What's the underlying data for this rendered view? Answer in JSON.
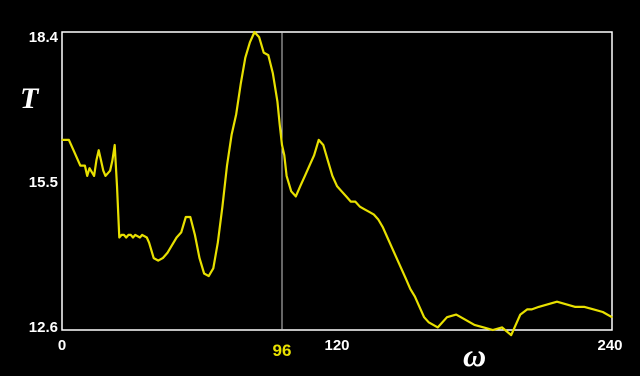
{
  "chart_data": {
    "type": "line",
    "xlabel": "ω",
    "ylabel": "T",
    "xlim": [
      0,
      240
    ],
    "ylim": [
      12.6,
      18.4
    ],
    "x_ticks": [
      "0",
      "120",
      "240"
    ],
    "y_ticks": [
      "18.4",
      "15.5",
      "12.6"
    ],
    "marker": {
      "x": 96,
      "label": "96"
    },
    "grid": false,
    "colors": {
      "background": "#000000",
      "line": "#e8e000",
      "frame": "#ffffff",
      "marker_line": "#cccccc",
      "marker_label": "#e8e000"
    },
    "series": [
      {
        "x": [
          0,
          3,
          5,
          8,
          10,
          11,
          12,
          14,
          15,
          16,
          17,
          18,
          19,
          20,
          21,
          22,
          23,
          24,
          25,
          26,
          27,
          28,
          29,
          30,
          31,
          32,
          34,
          35,
          37,
          38,
          40,
          42,
          44,
          46,
          48,
          50,
          52,
          54,
          56,
          58,
          60,
          62,
          64,
          66,
          68,
          70,
          72,
          74,
          76,
          78,
          80,
          82,
          84,
          86,
          88,
          90,
          92,
          94,
          95,
          96,
          97,
          98,
          100,
          102,
          104,
          106,
          108,
          110,
          112,
          114,
          116,
          118,
          120,
          122,
          124,
          126,
          128,
          130,
          132,
          134,
          136,
          138,
          140,
          142,
          144,
          146,
          148,
          150,
          152,
          154,
          156,
          158,
          160,
          164,
          168,
          172,
          176,
          180,
          184,
          188,
          192,
          196,
          200,
          203,
          205,
          208,
          212,
          216,
          220,
          224,
          228,
          232,
          236,
          240
        ],
        "y": [
          16.3,
          16.3,
          16.1,
          15.8,
          15.8,
          15.6,
          15.75,
          15.6,
          15.9,
          16.1,
          15.9,
          15.7,
          15.6,
          15.65,
          15.7,
          15.9,
          16.2,
          15.4,
          14.4,
          14.45,
          14.45,
          14.4,
          14.45,
          14.45,
          14.4,
          14.45,
          14.4,
          14.45,
          14.4,
          14.3,
          14.0,
          13.95,
          14.0,
          14.1,
          14.25,
          14.4,
          14.5,
          14.8,
          14.8,
          14.45,
          14.0,
          13.7,
          13.65,
          13.8,
          14.3,
          15.0,
          15.8,
          16.4,
          16.8,
          17.4,
          17.9,
          18.2,
          18.4,
          18.3,
          18.0,
          17.95,
          17.6,
          17.05,
          16.6,
          16.2,
          16.0,
          15.6,
          15.3,
          15.2,
          15.4,
          15.6,
          15.8,
          16.0,
          16.3,
          16.2,
          15.9,
          15.6,
          15.4,
          15.3,
          15.2,
          15.1,
          15.1,
          15.0,
          14.95,
          14.9,
          14.85,
          14.75,
          14.6,
          14.4,
          14.2,
          14.0,
          13.8,
          13.6,
          13.4,
          13.25,
          13.05,
          12.85,
          12.75,
          12.65,
          12.85,
          12.9,
          12.8,
          12.7,
          12.65,
          12.6,
          12.65,
          12.5,
          12.9,
          13.0,
          13.0,
          13.05,
          13.1,
          13.15,
          13.1,
          13.05,
          13.05,
          13.0,
          12.95,
          12.85
        ]
      }
    ]
  }
}
